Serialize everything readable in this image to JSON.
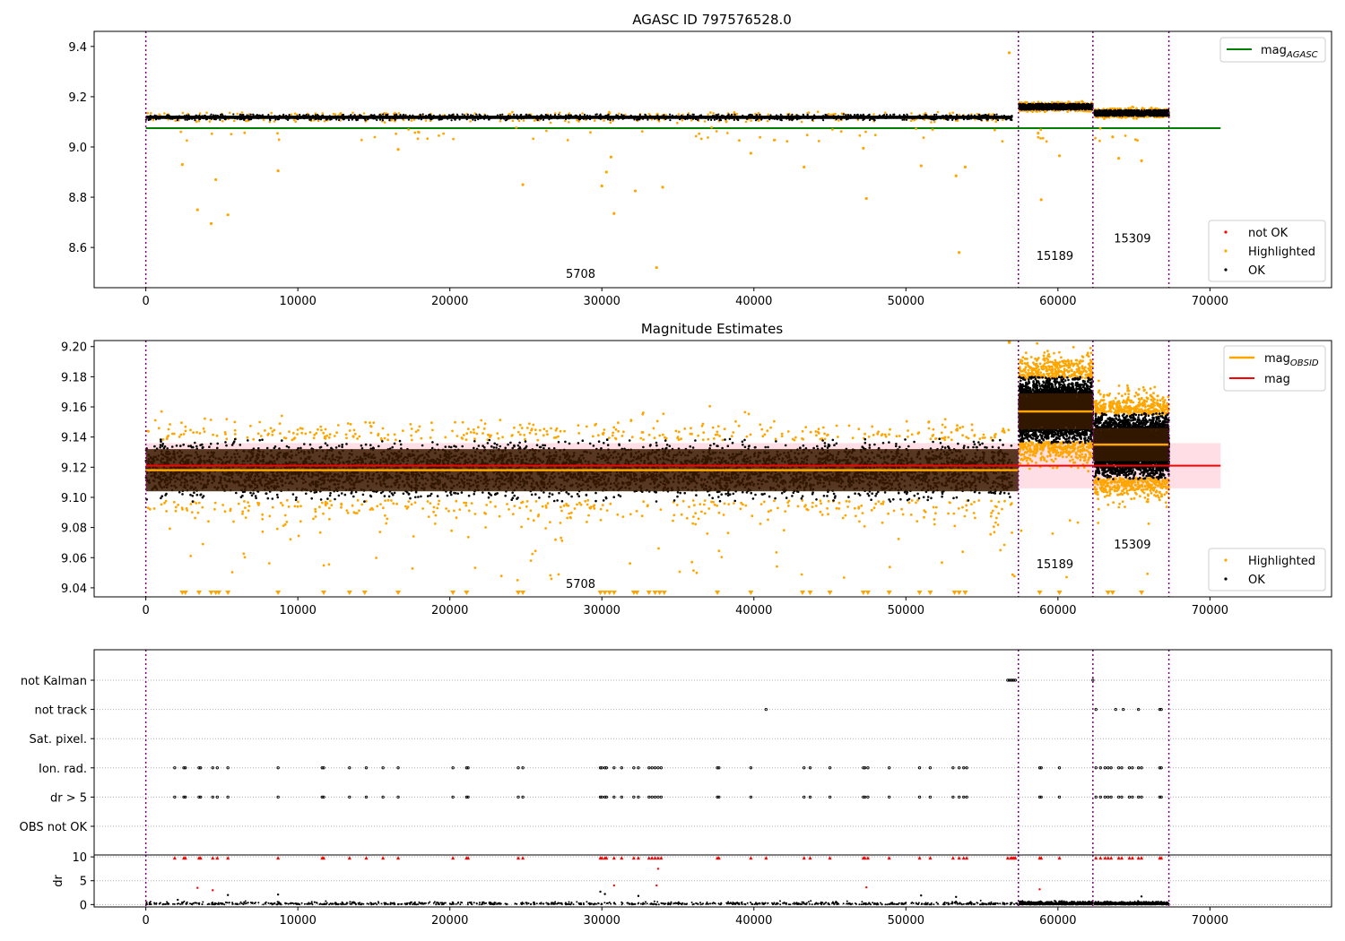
{
  "figure": {
    "title": "AGASC ID 797576528.0"
  },
  "colors": {
    "ok": "#000000",
    "highlighted": "#ffa500",
    "not_ok": "#ff0000",
    "agasc_line": "#008000",
    "mag_line": "#ff0000",
    "obsid_line": "#ffa500",
    "obs_boundary": "#800080",
    "band_fill": "#ffc0cb"
  },
  "chart_data": [
    {
      "id": "agasc",
      "type": "scatter",
      "title": "AGASC ID 797576528.0",
      "xlim": [
        -3400,
        78000
      ],
      "ylim": [
        8.44,
        9.46
      ],
      "xticks": [
        0,
        10000,
        20000,
        30000,
        40000,
        50000,
        60000,
        70000
      ],
      "yticks": [
        8.6,
        8.8,
        9.0,
        9.2,
        9.4
      ],
      "ytick_labels": [
        "8.6",
        "8.8",
        "9.0",
        "9.2",
        "9.4"
      ],
      "obs_boundaries": [
        0,
        57400,
        62300,
        67300
      ],
      "mag_agasc": {
        "value": 9.075,
        "x": [
          0,
          70700
        ]
      },
      "obsid_labels": [
        {
          "text": "5708",
          "x": 28600,
          "y": 8.48
        },
        {
          "text": "15189",
          "x": 59800,
          "y": 8.55
        },
        {
          "text": "15309",
          "x": 64900,
          "y": 8.62
        }
      ],
      "ok_segments": [
        {
          "x": [
            0,
            57000
          ],
          "center": 9.118,
          "spread": 0.022
        },
        {
          "x": [
            57450,
            62300
          ],
          "center": 9.16,
          "spread": 0.022
        },
        {
          "x": [
            62400,
            67300
          ],
          "center": 9.135,
          "spread": 0.022
        }
      ],
      "highlighted_points": [
        {
          "x": 56800,
          "y": 9.375
        },
        {
          "x": 2400,
          "y": 8.93
        },
        {
          "x": 3400,
          "y": 8.75
        },
        {
          "x": 4300,
          "y": 8.695
        },
        {
          "x": 4600,
          "y": 8.87
        },
        {
          "x": 5400,
          "y": 8.73
        },
        {
          "x": 8700,
          "y": 8.905
        },
        {
          "x": 24800,
          "y": 8.85
        },
        {
          "x": 30000,
          "y": 8.845
        },
        {
          "x": 30300,
          "y": 8.9
        },
        {
          "x": 30800,
          "y": 8.735
        },
        {
          "x": 32200,
          "y": 8.825
        },
        {
          "x": 33600,
          "y": 8.52
        },
        {
          "x": 34000,
          "y": 8.84
        },
        {
          "x": 43300,
          "y": 8.92
        },
        {
          "x": 47400,
          "y": 8.795
        },
        {
          "x": 51000,
          "y": 8.925
        },
        {
          "x": 53300,
          "y": 8.885
        },
        {
          "x": 53500,
          "y": 8.58
        },
        {
          "x": 53900,
          "y": 8.92
        },
        {
          "x": 58900,
          "y": 8.79
        },
        {
          "x": 60100,
          "y": 8.965
        },
        {
          "x": 64000,
          "y": 8.955
        },
        {
          "x": 65500,
          "y": 8.945
        },
        {
          "x": 63600,
          "y": 9.04
        },
        {
          "x": 16600,
          "y": 8.99
        },
        {
          "x": 39800,
          "y": 8.975
        },
        {
          "x": 47200,
          "y": 8.995
        },
        {
          "x": 58700,
          "y": 9.055
        },
        {
          "x": 30600,
          "y": 8.96
        }
      ],
      "legends": [
        {
          "position": "upper-right",
          "entries": [
            {
              "label": "mag",
              "sub": "AGASC",
              "style": "line",
              "color": "#008000"
            }
          ]
        },
        {
          "position": "lower-right",
          "entries": [
            {
              "label": "not OK",
              "style": "dot",
              "color": "#ff0000"
            },
            {
              "label": "Highlighted",
              "style": "dot",
              "color": "#ffa500"
            },
            {
              "label": "OK",
              "style": "dot",
              "color": "#000000"
            }
          ]
        }
      ]
    },
    {
      "id": "estimates",
      "type": "scatter",
      "title": "Magnitude Estimates",
      "xlim": [
        -3400,
        78000
      ],
      "ylim": [
        9.034,
        9.204
      ],
      "xticks": [
        0,
        10000,
        20000,
        30000,
        40000,
        50000,
        60000,
        70000
      ],
      "yticks": [
        9.04,
        9.06,
        9.08,
        9.1,
        9.12,
        9.14,
        9.16,
        9.18,
        9.2
      ],
      "ytick_labels": [
        "9.04",
        "9.06",
        "9.08",
        "9.10",
        "9.12",
        "9.14",
        "9.16",
        "9.18",
        "9.20"
      ],
      "obs_boundaries": [
        0,
        57400,
        62300,
        67300
      ],
      "mag": {
        "value": 9.121,
        "band": [
          9.106,
          9.136
        ],
        "x": [
          0,
          70700
        ]
      },
      "mag_obsid": [
        {
          "x": [
            0,
            57400
          ],
          "value": 9.118,
          "band": [
            9.104,
            9.132
          ]
        },
        {
          "x": [
            57400,
            62300
          ],
          "value": 9.157,
          "band": [
            9.145,
            9.169
          ]
        },
        {
          "x": [
            62300,
            67300
          ],
          "value": 9.135,
          "band": [
            9.124,
            9.146
          ]
        }
      ],
      "obsid_labels": [
        {
          "text": "5708",
          "x": 28600,
          "y": 9.04
        },
        {
          "text": "15189",
          "x": 59800,
          "y": 9.053
        },
        {
          "text": "15309",
          "x": 64900,
          "y": 9.066
        }
      ],
      "ok_segments": [
        {
          "x": [
            0,
            57000
          ],
          "center": 9.118,
          "spread": 0.019
        },
        {
          "x": [
            57450,
            62300
          ],
          "center": 9.158,
          "spread": 0.02
        },
        {
          "x": [
            62400,
            67300
          ],
          "center": 9.134,
          "spread": 0.02
        }
      ],
      "clipped_markers_x": [
        2400,
        2600,
        3500,
        4300,
        4600,
        4800,
        5400,
        8700,
        11700,
        13400,
        14400,
        16600,
        20200,
        21100,
        24500,
        24800,
        29900,
        30200,
        30500,
        30800,
        32100,
        32300,
        33100,
        33500,
        33800,
        34100,
        37600,
        39800,
        43200,
        43700,
        45000,
        47200,
        47500,
        48900,
        50900,
        51600,
        53200,
        53500,
        53900,
        58800,
        60100,
        63300,
        63600,
        65500
      ],
      "legends": [
        {
          "position": "upper-right",
          "entries": [
            {
              "label": "mag",
              "sub": "OBSID",
              "style": "line",
              "color": "#ffa500"
            },
            {
              "label": "mag",
              "style": "line",
              "color": "#ff0000"
            }
          ]
        },
        {
          "position": "lower-right",
          "entries": [
            {
              "label": "Highlighted",
              "style": "dot",
              "color": "#ffa500"
            },
            {
              "label": "OK",
              "style": "dot",
              "color": "#000000"
            }
          ]
        }
      ]
    },
    {
      "id": "flags",
      "type": "scatter",
      "title": "",
      "xlim": [
        -3400,
        78000
      ],
      "xticks": [
        0,
        10000,
        20000,
        30000,
        40000,
        50000,
        60000,
        70000
      ],
      "obs_boundaries": [
        0,
        57400,
        62300,
        67300
      ],
      "flag_rows": [
        "not Kalman",
        "not track",
        "Sat. pixel.",
        "Ion. rad.",
        "dr > 5",
        "OBS not OK"
      ],
      "flags": {
        "not Kalman": [
          56700,
          56800,
          56900,
          57000,
          57100,
          57200,
          62300
        ],
        "not track": [
          40800,
          62500,
          63800,
          64300,
          65300,
          66700,
          66800
        ],
        "Sat. pixel.": [],
        "Ion. rad.": [
          1900,
          2500,
          2600,
          3500,
          3600,
          4400,
          4700,
          5400,
          8700,
          11600,
          11700,
          13400,
          14500,
          15600,
          16600,
          20200,
          21100,
          21200,
          24500,
          24800,
          29900,
          30000,
          30200,
          30300,
          30800,
          31300,
          32100,
          32400,
          33100,
          33300,
          33500,
          33700,
          33900,
          37600,
          37700,
          39800,
          43300,
          43700,
          45000,
          47200,
          47300,
          47500,
          48900,
          50900,
          51600,
          53100,
          53500,
          53800,
          54000,
          58800,
          58900,
          60100,
          62500,
          62800,
          63100,
          63300,
          63500,
          64000,
          64200,
          64700,
          64900,
          65300,
          65500,
          66700,
          66800
        ],
        "dr > 5": [
          1900,
          2500,
          2600,
          3500,
          3600,
          4400,
          4700,
          5400,
          8700,
          11600,
          11700,
          13400,
          14500,
          15600,
          16600,
          20200,
          21100,
          21200,
          24500,
          24800,
          29900,
          30000,
          30200,
          30300,
          30800,
          31300,
          32100,
          32400,
          33100,
          33300,
          33500,
          33700,
          33900,
          37600,
          37700,
          39800,
          43300,
          43700,
          45000,
          47200,
          47300,
          47500,
          48900,
          50900,
          51600,
          53100,
          53500,
          53800,
          54000,
          58800,
          58900,
          60100,
          62500,
          62800,
          63100,
          63300,
          63500,
          64000,
          64200,
          64700,
          64900,
          65300,
          65500,
          66700,
          66800
        ],
        "OBS not OK": []
      },
      "dr": {
        "ylabel": "dr",
        "yticks": [
          0,
          5,
          10
        ],
        "ylim": [
          -0.5,
          10.4
        ],
        "clipped_x": [
          1900,
          2500,
          2600,
          3500,
          3600,
          4400,
          4700,
          5400,
          8700,
          11600,
          11700,
          13400,
          14500,
          15600,
          16600,
          20200,
          21100,
          21200,
          24500,
          24800,
          29900,
          30000,
          30200,
          30300,
          30800,
          31300,
          32100,
          32400,
          33100,
          33300,
          33500,
          33700,
          33900,
          37600,
          37700,
          39800,
          40800,
          43300,
          43700,
          45000,
          47200,
          47300,
          47500,
          48900,
          50900,
          51600,
          53100,
          53500,
          53800,
          54000,
          56700,
          56900,
          57000,
          57100,
          57200,
          58800,
          58900,
          60100,
          62500,
          62800,
          63100,
          63300,
          63500,
          64000,
          64200,
          64700,
          64900,
          65300,
          65500,
          66700,
          66800
        ],
        "mid_points": [
          {
            "x": 3400,
            "y": 3.5,
            "color": "#ff0000"
          },
          {
            "x": 4400,
            "y": 3.0,
            "color": "#ff0000"
          },
          {
            "x": 5400,
            "y": 2.0,
            "color": "#000000"
          },
          {
            "x": 8700,
            "y": 2.1,
            "color": "#000000"
          },
          {
            "x": 29900,
            "y": 2.7,
            "color": "#000000"
          },
          {
            "x": 30200,
            "y": 2.2,
            "color": "#000000"
          },
          {
            "x": 30800,
            "y": 4.0,
            "color": "#ff0000"
          },
          {
            "x": 32400,
            "y": 1.8,
            "color": "#000000"
          },
          {
            "x": 33600,
            "y": 4.0,
            "color": "#ff0000"
          },
          {
            "x": 33700,
            "y": 7.5,
            "color": "#ff0000"
          },
          {
            "x": 47400,
            "y": 3.6,
            "color": "#ff0000"
          },
          {
            "x": 58800,
            "y": 3.2,
            "color": "#ff0000"
          },
          {
            "x": 51000,
            "y": 1.9,
            "color": "#000000"
          },
          {
            "x": 53300,
            "y": 1.6,
            "color": "#000000"
          },
          {
            "x": 65500,
            "y": 1.7,
            "color": "#000000"
          },
          {
            "x": 2100,
            "y": 1.0,
            "color": "#000000"
          }
        ]
      }
    }
  ]
}
